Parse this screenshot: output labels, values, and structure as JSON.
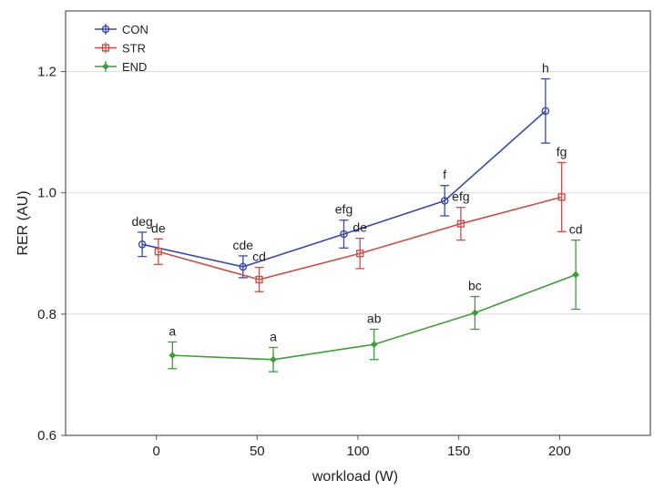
{
  "chart_data": {
    "type": "line",
    "xlabel": "workload (W)",
    "ylabel": "RER (AU)",
    "xlim": [
      -45,
      245
    ],
    "ylim": [
      0.6,
      1.3
    ],
    "xticks": [
      0,
      50,
      100,
      150,
      200
    ],
    "yticks": [
      0.6,
      0.8,
      1.0,
      1.2
    ],
    "ytick_labels": [
      "0.6",
      "0.8",
      "1.0",
      "1.2"
    ],
    "xtick_labels": [
      "0",
      "50",
      "100",
      "150",
      "200"
    ],
    "grid": "horizontal",
    "legend": "top-left",
    "series": [
      {
        "name": "CON",
        "color": "#3b4aa8",
        "marker": "circle",
        "x": [
          -7,
          43,
          93,
          143,
          193
        ],
        "y": [
          0.915,
          0.878,
          0.932,
          0.987,
          1.135
        ],
        "err": [
          0.02,
          0.018,
          0.023,
          0.025,
          0.053
        ],
        "labels": [
          "deg",
          "cde",
          "efg",
          "f",
          "h"
        ]
      },
      {
        "name": "STR",
        "color": "#c9504a",
        "marker": "square",
        "x": [
          1,
          51,
          101,
          151,
          201
        ],
        "y": [
          0.903,
          0.857,
          0.9,
          0.949,
          0.993
        ],
        "err": [
          0.021,
          0.02,
          0.025,
          0.027,
          0.057
        ],
        "labels": [
          "de",
          "cd",
          "de",
          "efg",
          "fg"
        ]
      },
      {
        "name": "END",
        "color": "#3f9c3a",
        "marker": "diamond",
        "x": [
          8,
          58,
          108,
          158,
          208
        ],
        "y": [
          0.732,
          0.725,
          0.75,
          0.802,
          0.865
        ],
        "err": [
          0.022,
          0.02,
          0.025,
          0.027,
          0.057
        ],
        "labels": [
          "a",
          "a",
          "ab",
          "bc",
          "cd"
        ]
      }
    ]
  }
}
